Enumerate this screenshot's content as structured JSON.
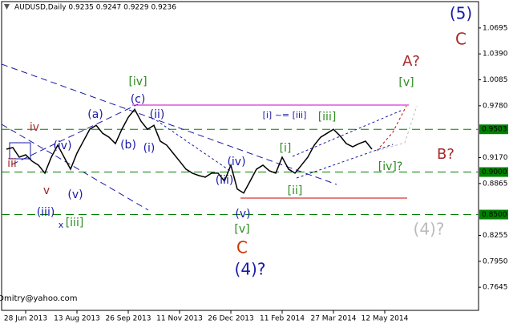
{
  "chart_data": {
    "type": "line",
    "title": "AUDUSD,Daily  0.9235 0.9247 0.9229 0.9236",
    "color": "#000000",
    "categories": [
      null,
      null,
      null,
      "28 Jun 2013",
      null,
      null,
      null,
      null,
      null,
      null,
      null,
      "13 Aug 2013",
      null,
      null,
      null,
      null,
      null,
      null,
      null,
      "26 Sep 2013",
      null,
      null,
      null,
      null,
      null,
      null,
      null,
      "11 Nov 2013",
      null,
      null,
      null,
      null,
      null,
      null,
      null,
      "26 Dec 2013",
      null,
      null,
      null,
      null,
      null,
      null,
      null,
      "11 Feb 2014",
      null,
      null,
      null,
      null,
      null,
      null,
      null,
      "27 Mar 2014",
      null,
      null,
      null,
      null,
      null,
      null,
      null,
      "12 May 2014"
    ],
    "values": [
      0.9269,
      0.9288,
      0.9175,
      0.9203,
      0.9128,
      0.9081,
      0.8987,
      0.9175,
      0.9316,
      0.9175,
      0.9034,
      0.9222,
      0.9363,
      0.9503,
      0.955,
      0.9456,
      0.941,
      0.9335,
      0.9503,
      0.9644,
      0.9738,
      0.9597,
      0.9503,
      0.955,
      0.9363,
      0.9316,
      0.9222,
      0.9128,
      0.9034,
      0.8987,
      0.8959,
      0.894,
      0.8987,
      0.8987,
      0.8893,
      0.9081,
      0.88,
      0.8753,
      0.8893,
      0.9034,
      0.9081,
      0.9015,
      0.8987,
      0.9175,
      0.9034,
      0.8987,
      0.9081,
      0.9175,
      0.9316,
      0.941,
      0.9456,
      0.9503,
      0.9428,
      0.9335,
      0.9297,
      0.9335,
      0.9363,
      0.9269,
      null,
      null
    ],
    "ylim": [
      0.7373,
      1.1005
    ],
    "yticks": [
      1.0695,
      {
        "value": 1.039,
        "label": "1.0390"
      },
      1.0085,
      {
        "value": 0.978,
        "label": "0.9780"
      },
      {
        "value": 0.917,
        "label": "0.9170"
      },
      0.8865,
      0.8255,
      {
        "value": 0.795,
        "label": "0.7950"
      },
      0.7645
    ],
    "levels": [
      {
        "value": 0.9503,
        "label": "0.9503",
        "color": "#008000"
      },
      {
        "value": 0.9,
        "label": "0.9000",
        "color": "#008000"
      },
      {
        "value": 0.85,
        "label": "0.8500",
        "color": "#008000"
      }
    ],
    "annotations": [
      {
        "text": "(5)",
        "color": "#1a1aa8"
      },
      {
        "text": "C",
        "color": "#a52a2a"
      },
      {
        "text": "A?",
        "color": "#a52a2a"
      },
      {
        "text": "[v]",
        "color": "#2e8b22"
      },
      {
        "text": "B?",
        "color": "#a52a2a"
      },
      {
        "text": "[iv]?",
        "color": "#2e8b22"
      },
      {
        "text": "(4)?",
        "color": "#bbbbbb"
      },
      {
        "text": "(4)?",
        "color": "#1a1aa8"
      },
      {
        "text": "C",
        "color": "#cc3300"
      },
      {
        "text": "[v]",
        "color": "#2e8b22"
      },
      {
        "text": "(v)",
        "color": "#1a1aa8"
      },
      {
        "text": "(iii)",
        "color": "#1a1aa8"
      },
      {
        "text": "(iv)",
        "color": "#1a1aa8"
      },
      {
        "text": "[ii]",
        "color": "#2e8b22"
      },
      {
        "text": "[i]",
        "color": "#2e8b22"
      },
      {
        "text": "[iii]",
        "color": "#2e8b22"
      },
      {
        "text": "[i] ~= [iii]",
        "color": "#1a1aa8"
      },
      {
        "text": "[iv]",
        "color": "#2e8b22"
      },
      {
        "text": "(c)",
        "color": "#1a1aa8"
      },
      {
        "text": "(ii)",
        "color": "#1a1aa8"
      },
      {
        "text": "(a)",
        "color": "#1a1aa8"
      },
      {
        "text": "(b)",
        "color": "#1a1aa8"
      },
      {
        "text": "(i)",
        "color": "#1a1aa8"
      },
      {
        "text": "(iv)",
        "color": "#1a1aa8"
      },
      {
        "text": "iv",
        "color": "#a52a2a"
      },
      {
        "text": "iii",
        "color": "#a52a2a"
      },
      {
        "text": "v",
        "color": "#a52a2a"
      },
      {
        "text": "(v)",
        "color": "#1a1aa8"
      },
      {
        "text": "(iii)",
        "color": "#1a1aa8"
      },
      {
        "text": "x",
        "color": "#1a1aa8"
      },
      {
        "text": "[iii]",
        "color": "#2e8b22"
      },
      {
        "text": "forDmitry@yahoo.com",
        "color": "#000000"
      }
    ]
  }
}
